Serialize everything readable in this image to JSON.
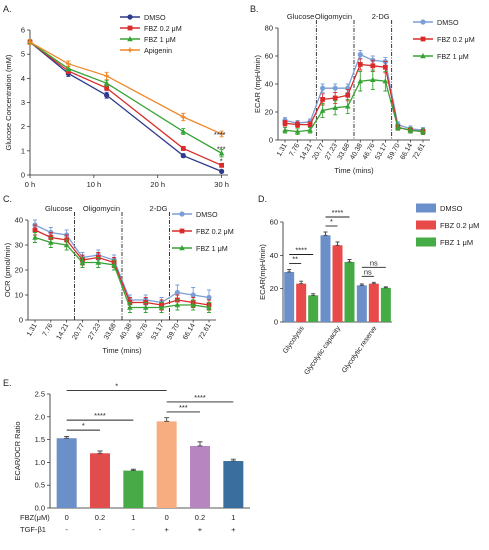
{
  "colors": {
    "dmso": "#2e3a8c",
    "fbz02": "#d92b2b",
    "fbz1": "#37a335",
    "apigenin": "#f0892b",
    "dmso_light": "#7a9fd6",
    "bar_dmso": "#6b8fc9",
    "bar_fbz02": "#e84a4a",
    "bar_fbz1": "#45ab45",
    "e_bars": [
      "#6b8fc9",
      "#e14d4d",
      "#47aa47",
      "#f7ad80",
      "#b786c0",
      "#3a6e9e"
    ]
  },
  "panels": {
    "A": {
      "letter": "A.",
      "chart_data": {
        "type": "line",
        "title": "",
        "xlabel": "",
        "ylabel": "Glucose Concentration (mM)",
        "x": [
          0,
          6,
          12,
          24,
          30
        ],
        "xticks": [
          0,
          10,
          20,
          30
        ],
        "xtick_labels": [
          "0 h",
          "10 h",
          "20 h",
          "30 h"
        ],
        "xlim": [
          0,
          31
        ],
        "ylim": [
          0,
          6
        ],
        "yticks": [
          0,
          1,
          2,
          3,
          4,
          5,
          6
        ],
        "series": [
          {
            "name": "DMSO",
            "color_key": "dmso",
            "marker": "circle",
            "values": [
              5.5,
              4.2,
              3.3,
              0.8,
              0.15
            ],
            "err": [
              0.1,
              0.12,
              0.12,
              0.08,
              0.05
            ]
          },
          {
            "name": "FBZ 0.2 μM",
            "color_key": "fbz02",
            "marker": "square",
            "values": [
              5.5,
              4.3,
              3.6,
              1.1,
              0.4
            ],
            "err": [
              0.1,
              0.1,
              0.1,
              0.08,
              0.06
            ]
          },
          {
            "name": "FBZ 1 μM",
            "color_key": "fbz1",
            "marker": "triangle",
            "values": [
              5.5,
              4.4,
              3.8,
              1.8,
              0.9
            ],
            "err": [
              0.1,
              0.1,
              0.12,
              0.12,
              0.15
            ]
          },
          {
            "name": "Apigenin",
            "color_key": "apigenin",
            "marker": "cross",
            "values": [
              5.5,
              4.6,
              4.1,
              2.4,
              1.7
            ],
            "err": [
              0.1,
              0.12,
              0.15,
              0.15,
              0.12
            ]
          }
        ],
        "annotations": [
          "****",
          "***",
          "*"
        ]
      }
    },
    "B": {
      "letter": "B.",
      "chart_data": {
        "type": "line",
        "title": "",
        "xlabel": "Time (mins)",
        "ylabel": "ECAR (mpH/min)",
        "x_labels": [
          "1.31",
          "7.76",
          "14.21",
          "20.77",
          "27.23",
          "33.68",
          "40.38",
          "46.76",
          "53.17",
          "59.70",
          "66.14",
          "72.61"
        ],
        "ylim": [
          0,
          80
        ],
        "yticks": [
          0,
          20,
          40,
          60,
          80
        ],
        "injections": [
          {
            "label": "Glucose",
            "after_index": 2
          },
          {
            "label": "Oligomycin",
            "after_index": 5
          },
          {
            "label": "2-DG",
            "after_index": 8
          }
        ],
        "series": [
          {
            "name": "DMSO",
            "color_key": "dmso_light",
            "marker": "circle",
            "values": [
              14,
              12,
              13,
              37,
              37,
              37,
              61,
              57,
              56,
              11,
              8,
              7
            ],
            "err": [
              2,
              2,
              2,
              3,
              3,
              3,
              3,
              3,
              3,
              2,
              2,
              2
            ]
          },
          {
            "name": "FBZ 0.2 μM",
            "color_key": "fbz02",
            "marker": "square",
            "values": [
              12,
              11,
              11,
              29,
              30,
              32,
              54,
              53,
              52,
              9,
              7,
              6
            ],
            "err": [
              2,
              2,
              2,
              4,
              4,
              4,
              4,
              4,
              4,
              2,
              2,
              2
            ]
          },
          {
            "name": "FBZ 1 μM",
            "color_key": "fbz1",
            "marker": "triangle",
            "values": [
              7,
              6,
              7,
              21,
              23,
              24,
              42,
              43,
              42,
              9,
              7,
              6
            ],
            "err": [
              2,
              2,
              2,
              5,
              5,
              5,
              7,
              7,
              7,
              2,
              2,
              2
            ]
          }
        ]
      }
    },
    "C": {
      "letter": "C.",
      "chart_data": {
        "type": "line",
        "title": "",
        "xlabel": "Time (mins)",
        "ylabel": "OCR (pmol/min)",
        "x_labels": [
          "1.31",
          "7.76",
          "14.21",
          "20.77",
          "27.23",
          "33.68",
          "40.38",
          "46.76",
          "53.17",
          "59.70",
          "66.14",
          "72.61"
        ],
        "ylim": [
          0,
          40
        ],
        "yticks": [
          0,
          10,
          20,
          30,
          40
        ],
        "injections": [
          {
            "label": "Glucose",
            "after_index": 2
          },
          {
            "label": "Oligomycin",
            "after_index": 5
          },
          {
            "label": "2-DG",
            "after_index": 8
          }
        ],
        "series": [
          {
            "name": "DMSO",
            "color_key": "dmso_light",
            "marker": "circle",
            "values": [
              38,
              35,
              34,
              25,
              26,
              24,
              8,
              8,
              7,
              11,
              10,
              9
            ],
            "err": [
              2,
              2,
              2,
              2,
              2,
              2,
              2,
              2,
              2,
              3,
              3,
              3
            ]
          },
          {
            "name": "FBZ 0.2 μM",
            "color_key": "fbz02",
            "marker": "square",
            "values": [
              36,
              33,
              32,
              24,
              25,
              23,
              7,
              7,
              6,
              8,
              7,
              6
            ],
            "err": [
              2,
              2,
              2,
              2,
              2,
              2,
              2,
              2,
              2,
              2,
              2,
              2
            ]
          },
          {
            "name": "FBZ 1 μM",
            "color_key": "fbz1",
            "marker": "triangle",
            "values": [
              33,
              31,
              30,
              23,
              23,
              22,
              5,
              5,
              5,
              6,
              6,
              5
            ],
            "err": [
              2,
              2,
              2,
              2,
              2,
              2,
              2,
              2,
              2,
              2,
              2,
              2
            ]
          }
        ]
      }
    },
    "D": {
      "letter": "D.",
      "chart_data": {
        "type": "bar",
        "title": "",
        "xlabel": "",
        "ylabel": "ECAR(mpH/min)",
        "categories": [
          "Glycolysis",
          "Glycolytic capacity",
          "Glycolytic reserve"
        ],
        "ylim": [
          0,
          60
        ],
        "yticks": [
          0,
          20,
          40,
          60
        ],
        "series": [
          {
            "name": "DMSO",
            "color_key": "bar_dmso",
            "values": [
              30,
              52,
              22
            ],
            "err": [
              1.5,
              2,
              0.8
            ]
          },
          {
            "name": "FBZ 0.2 μM",
            "color_key": "bar_fbz02",
            "values": [
              23,
              46,
              23
            ],
            "err": [
              1.5,
              2,
              0.8
            ]
          },
          {
            "name": "FBZ 1 μM",
            "color_key": "bar_fbz1",
            "values": [
              16,
              36,
              20.5
            ],
            "err": [
              1,
              1.5,
              0.6
            ]
          }
        ],
        "significance": [
          {
            "category": 0,
            "from": 0,
            "to": 1,
            "label": "**"
          },
          {
            "category": 0,
            "from": 0,
            "to": 2,
            "label": "****"
          },
          {
            "category": 1,
            "from": 0,
            "to": 1,
            "label": "*"
          },
          {
            "category": 1,
            "from": 0,
            "to": 2,
            "label": "****"
          },
          {
            "category": 2,
            "from": 0,
            "to": 1,
            "label": "ns"
          },
          {
            "category": 2,
            "from": 0,
            "to": 2,
            "label": "ns"
          }
        ]
      }
    },
    "E": {
      "letter": "E.",
      "chart_data": {
        "type": "bar",
        "title": "",
        "xlabel": "",
        "ylabel": "ECAR/OCR Ratio",
        "categories": [
          "1",
          "2",
          "3",
          "4",
          "5",
          "6"
        ],
        "values": [
          1.53,
          1.2,
          0.82,
          1.9,
          1.36,
          1.03
        ],
        "err": [
          0.04,
          0.05,
          0.03,
          0.08,
          0.09,
          0.04
        ],
        "ylim": [
          0,
          2.5
        ],
        "yticks": [
          0.0,
          0.5,
          1.0,
          1.5,
          2.0,
          2.5
        ],
        "ytick_labels": [
          "0.0",
          "0.5",
          "1.0",
          "1.5",
          "2.0",
          "2.5"
        ],
        "row_labels": [
          "FBZ(μM)",
          "TGF-β1"
        ],
        "fbz_values": [
          "0",
          "0.2",
          "1",
          "0",
          "0.2",
          "1"
        ],
        "tgf_values": [
          "-",
          "-",
          "-",
          "+",
          "+",
          "+"
        ],
        "significance": [
          {
            "from": 0,
            "to": 1,
            "label": "*",
            "level": 0
          },
          {
            "from": 0,
            "to": 2,
            "label": "****",
            "level": 1
          },
          {
            "from": 0,
            "to": 3,
            "label": "*",
            "level": 2
          },
          {
            "from": 3,
            "to": 4,
            "label": "***",
            "level": 0
          },
          {
            "from": 3,
            "to": 5,
            "label": "****",
            "level": 1
          }
        ]
      }
    }
  }
}
